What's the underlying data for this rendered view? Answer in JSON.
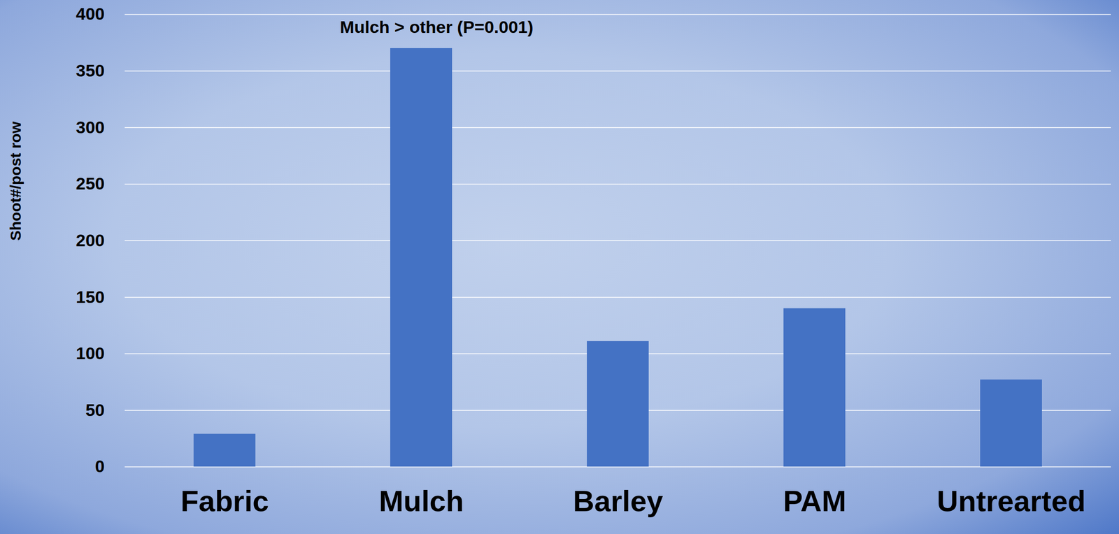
{
  "chart_data": {
    "type": "bar",
    "categories": [
      "Fabric",
      "Mulch",
      "Barley",
      "PAM",
      "Untrearted"
    ],
    "values": [
      29,
      370,
      111,
      140,
      77
    ],
    "color": "#4472c4",
    "y_label": "Shoot#/post row",
    "annotation": {
      "text": "Mulch > other (P=0.001)",
      "x": "Mulch"
    },
    "ylim": [
      0,
      400
    ],
    "yticks": [
      0,
      50,
      100,
      150,
      200,
      250,
      300,
      350,
      400
    ],
    "grid": true
  }
}
